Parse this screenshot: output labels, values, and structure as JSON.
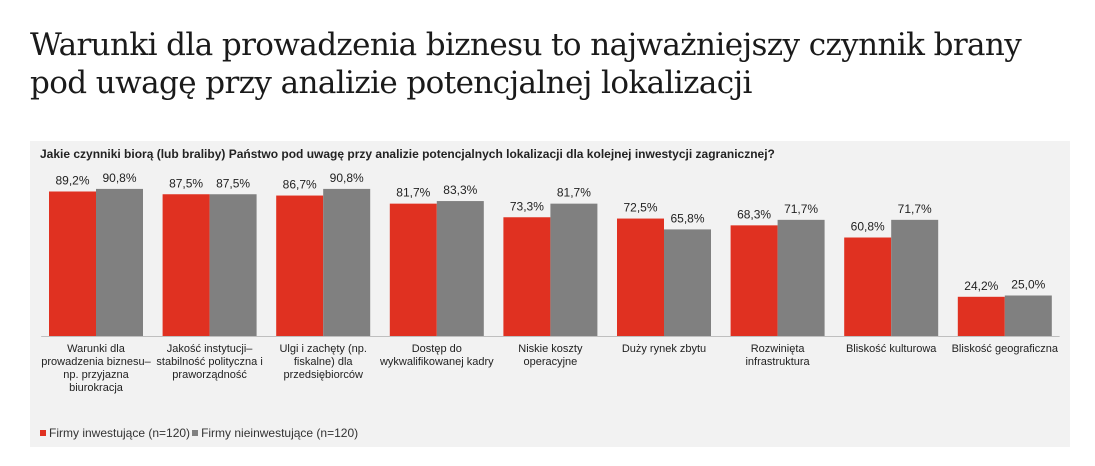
{
  "page": {
    "title": "Warunki dla prowadzenia biznesu to najważniejszy czynnik brany pod uwagę przy analizie potencjalnej lokalizacji"
  },
  "chart_data": {
    "type": "bar",
    "title": "Jakie czynniki biorą (lub braliby) Państwo pod uwagę przy analizie potencjalnych lokalizacji dla kolejnej inwestycji zagranicznej?",
    "categories": [
      "Warunki dla prowadzenia biznesu– np. przyjazna biurokracja",
      "Jakość instytucji– stabilność polityczna i praworządność",
      "Ulgi i zachęty (np. fiskalne) dla przedsiębiorców",
      "Dostęp do wykwalifikowanej kadry",
      "Niskie koszty operacyjne",
      "Duży rynek zbytu",
      "Rozwinięta infrastruktura",
      "Bliskość kulturowa",
      "Bliskość geograficzna"
    ],
    "category_lines": [
      [
        "Warunki dla",
        "prowadzenia biznesu–",
        "np. przyjazna",
        "biurokracja"
      ],
      [
        "Jakość instytucji–",
        "stabilność polityczna i",
        "praworządność"
      ],
      [
        "Ulgi i zachęty (np.",
        "fiskalne) dla",
        "przedsiębiorców"
      ],
      [
        "Dostęp do",
        "wykwalifikowanej kadry"
      ],
      [
        "Niskie koszty",
        "operacyjne"
      ],
      [
        "Duży rynek zbytu"
      ],
      [
        "Rozwinięta",
        "infrastruktura"
      ],
      [
        "Bliskość kulturowa"
      ],
      [
        "Bliskość geograficzna"
      ]
    ],
    "series": [
      {
        "name": "Firmy inwestujące (n=120)",
        "color": "#e03121",
        "values": [
          89.2,
          87.5,
          86.7,
          81.7,
          73.3,
          72.5,
          68.3,
          60.8,
          24.2
        ],
        "labels": [
          "89,2%",
          "87,5%",
          "86,7%",
          "81,7%",
          "73,3%",
          "72,5%",
          "68,3%",
          "60,8%",
          "24,2%"
        ]
      },
      {
        "name": "Firmy nieinwestujące (n=120)",
        "color": "#808080",
        "values": [
          90.8,
          87.5,
          90.8,
          83.3,
          81.7,
          65.8,
          71.7,
          71.7,
          25.0
        ],
        "labels": [
          "90,8%",
          "87,5%",
          "90,8%",
          "83,3%",
          "81,7%",
          "65,8%",
          "71,7%",
          "71,7%",
          "25,0%"
        ]
      }
    ],
    "ylim": [
      0,
      100
    ],
    "grid": false,
    "legend_position": "bottom-left"
  }
}
